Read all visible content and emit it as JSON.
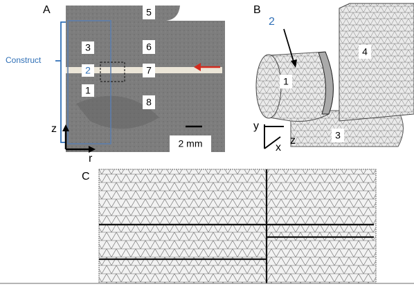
{
  "panel_a": {
    "label": "A",
    "construct": "Construct",
    "regions": [
      "1",
      "2",
      "3",
      "5",
      "6",
      "7",
      "8"
    ],
    "scale_bar": "2 mm",
    "axes": {
      "vertical": "z",
      "horizontal": "r"
    }
  },
  "panel_b": {
    "label": "B",
    "callout": "2",
    "parts": [
      "1",
      "3",
      "4"
    ],
    "axes": {
      "y": "y",
      "z": "z",
      "x": "x"
    }
  },
  "panel_c": {
    "label": "C"
  }
}
